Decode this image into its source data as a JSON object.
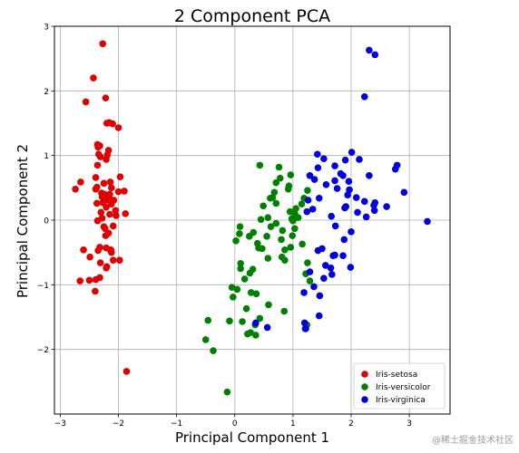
{
  "watermark": "@稀土掘金技术社区",
  "chart_data": {
    "type": "scatter",
    "title": "2 Component PCA",
    "xlabel": "Principal Component 1",
    "ylabel": "Principal Component 2",
    "xlim": [
      -3.1,
      3.7
    ],
    "ylim": [
      -3.0,
      3.0
    ],
    "xticks": [
      -3,
      -2,
      -1,
      0,
      1,
      2,
      3
    ],
    "yticks": [
      -2,
      -1,
      0,
      1,
      2,
      3
    ],
    "grid": true,
    "legend_position": "lower-right",
    "series": [
      {
        "name": "Iris-setosa",
        "color": "#e00000",
        "x": [
          -2.27,
          -2.43,
          -2.22,
          -2.16,
          -2.2,
          -2.1,
          -2.0,
          -2.36,
          -2.32,
          -2.35,
          -2.34,
          -2.31,
          -2.17,
          -2.19,
          -2.21,
          -2.39,
          -2.56,
          -2.65,
          -2.14,
          -2.25,
          -2.37,
          -2.12,
          -2.39,
          -2.29,
          -2.24,
          -2.2,
          -2.08,
          -2.27,
          -2.37,
          -2.12,
          -2.21,
          -2.05,
          -2.3,
          -2.15,
          -2.04,
          -2.28,
          -2.74,
          -2.0,
          -2.36,
          -2.16,
          -1.9,
          -2.25,
          -2.36,
          -2.09,
          -1.97,
          -2.22,
          -2.32,
          -2.21,
          -2.14,
          -2.35,
          -2.49,
          -2.09,
          -2.31,
          -2.2,
          -2.21,
          -2.6,
          -2.13,
          -1.98,
          -2.32,
          -2.66,
          -2.39,
          -2.5,
          -2.4,
          -1.88,
          -2.28,
          -2.23,
          -2.17,
          -2.12,
          -2.15,
          -1.86
        ],
        "y": [
          2.73,
          2.2,
          1.89,
          1.51,
          1.5,
          1.49,
          1.43,
          1.17,
          1.15,
          1.13,
          1.02,
          0.98,
          1.08,
          1.01,
          0.94,
          0.66,
          1.83,
          0.59,
          0.59,
          0.57,
          0.51,
          0.5,
          0.48,
          0.42,
          0.4,
          0.31,
          0.31,
          0.27,
          0.26,
          0.25,
          0.2,
          0.15,
          0.12,
          0.09,
          0.07,
          0.03,
          0.48,
          0.44,
          0.85,
          0.34,
          0.45,
          -0.1,
          -0.01,
          -0.09,
          0.67,
          -0.24,
          -0.42,
          -0.43,
          -0.46,
          -0.47,
          -0.57,
          -0.62,
          -0.66,
          -0.72,
          -0.74,
          -0.46,
          -0.46,
          -0.62,
          -0.89,
          -0.94,
          -0.92,
          -0.93,
          -1.1,
          0.1,
          0.36,
          -0.13,
          -0.2,
          -0.5,
          0.4,
          -2.34
        ]
      },
      {
        "name": "Iris-versicolor",
        "color": "#008000",
        "x": [
          0.43,
          0.76,
          0.96,
          0.78,
          0.71,
          0.93,
          0.92,
          0.68,
          0.61,
          0.65,
          0.71,
          0.49,
          1.05,
          0.95,
          0.45,
          0.57,
          0.62,
          0.32,
          0.08,
          0.02,
          0.09,
          0.25,
          0.55,
          0.39,
          0.41,
          0.1,
          0.1,
          0.26,
          0.31,
          0.17,
          0.04,
          -0.03,
          0.28,
          0.37,
          0.2,
          0.13,
          0.22,
          0.27,
          0.35,
          0.36,
          0.43,
          0.58,
          0.85,
          0.86,
          0.96,
          0.99,
          1.03,
          1.09,
          1.15,
          1.19,
          1.25,
          1.0,
          1.22,
          1.29,
          1.21,
          1.24,
          0.71,
          0.98,
          0.86,
          0.57,
          0.47,
          0.81,
          0.8,
          0.82,
          1.03,
          1.16,
          1.25,
          -0.05,
          -0.09,
          -0.46,
          -0.5,
          -0.37,
          -0.13
        ],
        "y": [
          0.85,
          0.82,
          0.7,
          0.65,
          0.58,
          0.53,
          0.48,
          0.43,
          0.34,
          0.35,
          0.26,
          0.22,
          0.18,
          0.13,
          0.01,
          0.04,
          -0.1,
          -0.19,
          -0.21,
          -0.32,
          -0.1,
          -0.25,
          -0.25,
          -0.36,
          -0.43,
          -0.67,
          -0.75,
          -0.82,
          -0.76,
          -0.91,
          -1.07,
          -1.19,
          -1.12,
          -1.14,
          -1.37,
          -1.57,
          -1.76,
          -1.74,
          -1.62,
          -1.78,
          -1.52,
          -1.31,
          -1.41,
          -0.46,
          -0.42,
          -0.24,
          -0.13,
          0.04,
          0.25,
          0.34,
          0.46,
          -0.01,
          -0.83,
          -0.94,
          -1.68,
          -1.62,
          -0.05,
          0.02,
          -0.62,
          -0.59,
          -0.44,
          -0.57,
          -0.3,
          -0.16,
          0.1,
          -0.37,
          -0.66,
          -1.04,
          -1.56,
          -1.55,
          -1.85,
          -2.02,
          -2.66
        ]
      },
      {
        "name": "Iris-virginica",
        "color": "#0000dd",
        "x": [
          2.31,
          2.41,
          2.23,
          2.79,
          2.76,
          2.91,
          3.31,
          2.61,
          2.39,
          2.23,
          2.09,
          1.97,
          1.96,
          1.86,
          1.72,
          1.53,
          1.42,
          1.43,
          1.37,
          1.29,
          1.26,
          1.24,
          1.34,
          1.45,
          1.57,
          1.72,
          1.82,
          1.9,
          2.01,
          2.14,
          2.31,
          1.76,
          1.94,
          1.89,
          1.66,
          1.73,
          2.0,
          1.91,
          2.11,
          2.26,
          2.4,
          2.41,
          1.88,
          1.5,
          1.72,
          1.69,
          1.43,
          1.65,
          1.86,
          1.56,
          1.53,
          1.29,
          1.36,
          1.46,
          1.19,
          1.45,
          1.67,
          1.99,
          0.36,
          0.56,
          1.2,
          1.22
        ],
        "y": [
          2.63,
          2.56,
          1.91,
          0.85,
          0.79,
          0.43,
          -0.02,
          0.21,
          0.23,
          0.29,
          0.35,
          0.47,
          0.6,
          0.69,
          0.84,
          0.95,
          1.02,
          0.81,
          0.63,
          0.69,
          0.31,
          0.13,
          0.17,
          0.34,
          0.55,
          0.61,
          0.72,
          0.93,
          1.05,
          0.94,
          0.69,
          0.49,
          0.39,
          0.19,
          0.06,
          -0.09,
          -0.18,
          0.21,
          0.12,
          0.05,
          0.15,
          0.27,
          -0.3,
          -0.44,
          -0.54,
          -0.55,
          -0.47,
          -0.74,
          -0.55,
          -0.7,
          -0.9,
          -0.8,
          -1.03,
          -1.17,
          -1.12,
          -1.48,
          -0.84,
          -0.73,
          -1.59,
          -1.66,
          -1.59,
          -1.68
        ]
      }
    ]
  }
}
